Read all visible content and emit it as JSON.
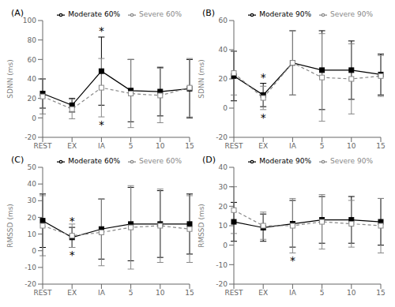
{
  "chart_data": [
    {
      "type": "line",
      "title": "(A)",
      "y_label": "SDNN (ms)",
      "categories": [
        "REST",
        "EX",
        "IA",
        "5",
        "10",
        "15"
      ],
      "series": [
        {
          "name": "Moderate 60%",
          "color": "#000000",
          "marker": "square",
          "line_style": "solid",
          "values": [
            25,
            13,
            48,
            28,
            27,
            30
          ],
          "yerr": [
            15,
            7,
            35,
            32,
            25,
            30
          ]
        },
        {
          "name": "Severe 60%",
          "color": "#888888",
          "marker": "open_square",
          "line_style": "dashed",
          "values": [
            22,
            9,
            31,
            25,
            23,
            31
          ],
          "yerr": [
            18,
            10,
            30,
            35,
            28,
            30
          ]
        }
      ],
      "annotations": [
        {
          "text": "*",
          "category": "IA",
          "series": "Moderate 60%",
          "position": "above"
        },
        {
          "text": "*",
          "category": "IA",
          "series": "Severe 60%",
          "position": "below"
        }
      ],
      "ylim": [
        -20,
        100
      ],
      "yticks": [
        -20,
        0,
        20,
        40,
        60,
        80,
        100
      ],
      "legend": "upper right",
      "grid": false
    },
    {
      "type": "line",
      "title": "(B)",
      "y_label": "SDNN (ms)",
      "categories": [
        "REST",
        "EX",
        "IA",
        "5",
        "10",
        "15"
      ],
      "series": [
        {
          "name": "Moderate 90%",
          "color": "#000000",
          "marker": "square",
          "line_style": "solid",
          "values": [
            22,
            9,
            31,
            26,
            26,
            23
          ],
          "yerr": [
            17,
            8,
            22,
            27,
            20,
            14
          ]
        },
        {
          "name": "Severe 90%",
          "color": "#888888",
          "marker": "open_square",
          "line_style": "dashed",
          "values": [
            24,
            7,
            31,
            21,
            20,
            22
          ],
          "yerr": [
            15,
            8,
            22,
            30,
            24,
            14
          ]
        }
      ],
      "annotations": [
        {
          "text": "*",
          "category": "EX",
          "series": "Moderate 90%",
          "position": "above"
        },
        {
          "text": "*",
          "category": "EX",
          "series": "Severe 90%",
          "position": "below"
        }
      ],
      "ylim": [
        -20,
        60
      ],
      "yticks": [
        -20,
        0,
        20,
        40,
        60
      ],
      "legend": "upper right",
      "grid": false
    },
    {
      "type": "line",
      "title": "(C)",
      "y_label": "RMSSD (ms)",
      "categories": [
        "REST",
        "EX",
        "IA",
        "5",
        "10",
        "15"
      ],
      "series": [
        {
          "name": "Moderate 60%",
          "color": "#000000",
          "marker": "square",
          "line_style": "solid",
          "values": [
            18,
            8,
            13,
            16,
            16,
            16
          ],
          "yerr": [
            16,
            6,
            18,
            22,
            20,
            18
          ]
        },
        {
          "name": "Severe 60%",
          "color": "#888888",
          "marker": "open_square",
          "line_style": "dashed",
          "values": [
            15,
            9,
            11,
            14,
            15,
            13
          ],
          "yerr": [
            18,
            7,
            20,
            25,
            22,
            20
          ]
        }
      ],
      "annotations": [
        {
          "text": "*",
          "category": "EX",
          "series": "Moderate 60%",
          "position": "above"
        },
        {
          "text": "*",
          "category": "EX",
          "series": "Severe 60%",
          "position": "below"
        }
      ],
      "ylim": [
        -20,
        50
      ],
      "yticks": [
        -20,
        -10,
        0,
        10,
        20,
        30,
        40,
        50
      ],
      "legend": "upper right",
      "grid": false
    },
    {
      "type": "line",
      "title": "(D)",
      "y_label": "RMSSD (ms)",
      "categories": [
        "REST",
        "EX",
        "IA",
        "5",
        "10",
        "15"
      ],
      "series": [
        {
          "name": "Moderate 90%",
          "color": "#000000",
          "marker": "square",
          "line_style": "solid",
          "values": [
            12,
            9,
            11,
            13,
            13,
            12
          ],
          "yerr": [
            10,
            7,
            12,
            12,
            12,
            12
          ]
        },
        {
          "name": "Severe 90%",
          "color": "#888888",
          "marker": "open_square",
          "line_style": "dashed",
          "values": [
            18,
            10,
            10,
            12,
            11,
            10
          ],
          "yerr": [
            12,
            7,
            14,
            14,
            12,
            14
          ]
        }
      ],
      "annotations": [
        {
          "text": "*",
          "category": "IA",
          "series": "Severe 90%",
          "position": "below"
        }
      ],
      "ylim": [
        -20,
        40
      ],
      "yticks": [
        -20,
        -10,
        0,
        10,
        20,
        30,
        40
      ],
      "legend": "upper right",
      "grid": false
    }
  ]
}
